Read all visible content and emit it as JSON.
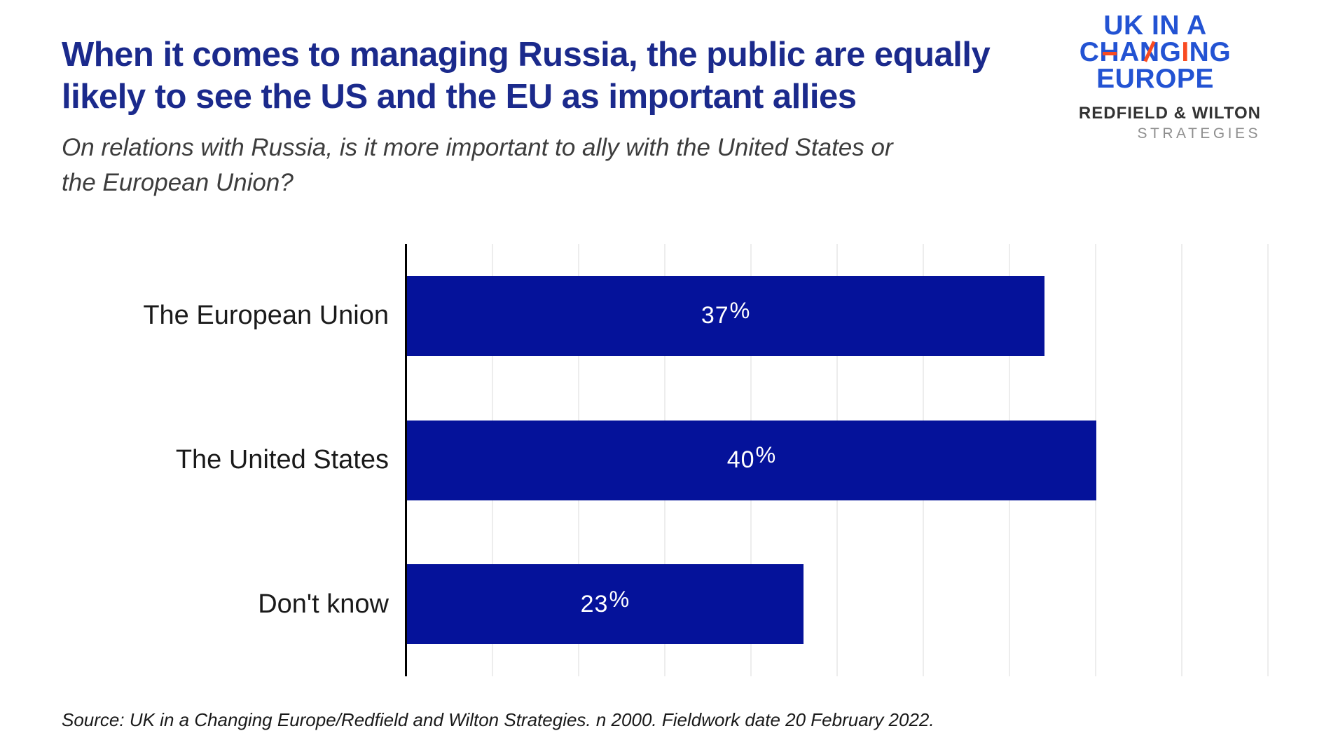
{
  "header": {
    "title_lines": [
      "When it comes to managing Russia, the public are equally",
      "likely to see the US and the EU as important allies"
    ],
    "subtitle_lines": [
      "On relations with Russia, is it more important to ally with the United States or",
      "the European Union?"
    ]
  },
  "branding": {
    "ukice_lines": [
      "UK IN A",
      "CHANGING",
      "EUROPE"
    ],
    "changing_accents": {
      "crossbar_index": 1,
      "diagonal_index": 3,
      "full_index": 5
    },
    "rw_line1": "REDFIELD & WILTON",
    "rw_line2": "STRATEGIES",
    "logo_blue": "#2353D3",
    "logo_orange": "#F94B21"
  },
  "chart_data": {
    "type": "bar",
    "orientation": "horizontal",
    "title": "When it comes to managing Russia, the public are equally likely to see the US and the EU as important allies",
    "subtitle": "On relations with Russia, is it more important to ally with the United States or the European Union?",
    "categories": [
      "The European Union",
      "The United States",
      "Don't know"
    ],
    "values": [
      37,
      40,
      23
    ],
    "value_labels": [
      "37%",
      "40%",
      "23%"
    ],
    "xlabel": "",
    "ylabel": "",
    "xlim": [
      0,
      50
    ],
    "gridline_step_pct": 5,
    "grid": true,
    "legend": "none",
    "bar_color": "#05129A",
    "value_label_color": "#FFFFFF",
    "axis_color": "#000000",
    "gridline_color": "#EDEDED"
  },
  "footer": {
    "source": "Source: UK in a Changing Europe/Redfield and Wilton Strategies.  n 2000.  Fieldwork date 20 February 2022."
  },
  "colors": {
    "title": "#1B2A8C",
    "subtitle": "#3D3D3D",
    "background": "#FFFFFF"
  }
}
